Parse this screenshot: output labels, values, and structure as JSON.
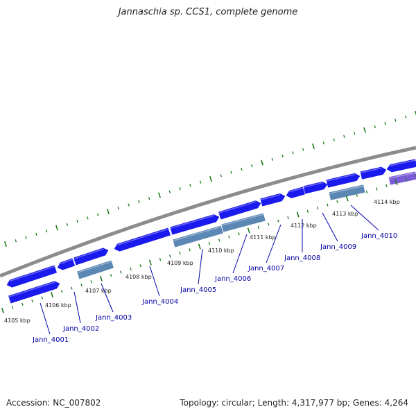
{
  "title": "Jannaschia sp. CCS1, complete genome",
  "accession": "Accession: NC_007802",
  "genome_info": "Topology: circular; Length: 4,317,977 bp; Genes: 4,264",
  "colors": {
    "backbone": "#8c8c8c",
    "tick": "#1a7a1a",
    "cds": "#1a1aee",
    "rna": "#5b87b5",
    "other": "#7b5bd6",
    "label": "#0000a0"
  },
  "kbp_labels": [
    "4105 kbp",
    "4106 kbp",
    "4107 kbp",
    "4108 kbp",
    "4109 kbp",
    "4110 kbp",
    "4111 kbp",
    "4112 kbp",
    "4113 kbp",
    "4114 kbp"
  ],
  "genes": [
    "Jann_4001",
    "Jann_4002",
    "Jann_4003",
    "Jann_4004",
    "Jann_4005",
    "Jann_4006",
    "Jann_4007",
    "Jann_4008",
    "Jann_4009",
    "Jann_4010"
  ]
}
